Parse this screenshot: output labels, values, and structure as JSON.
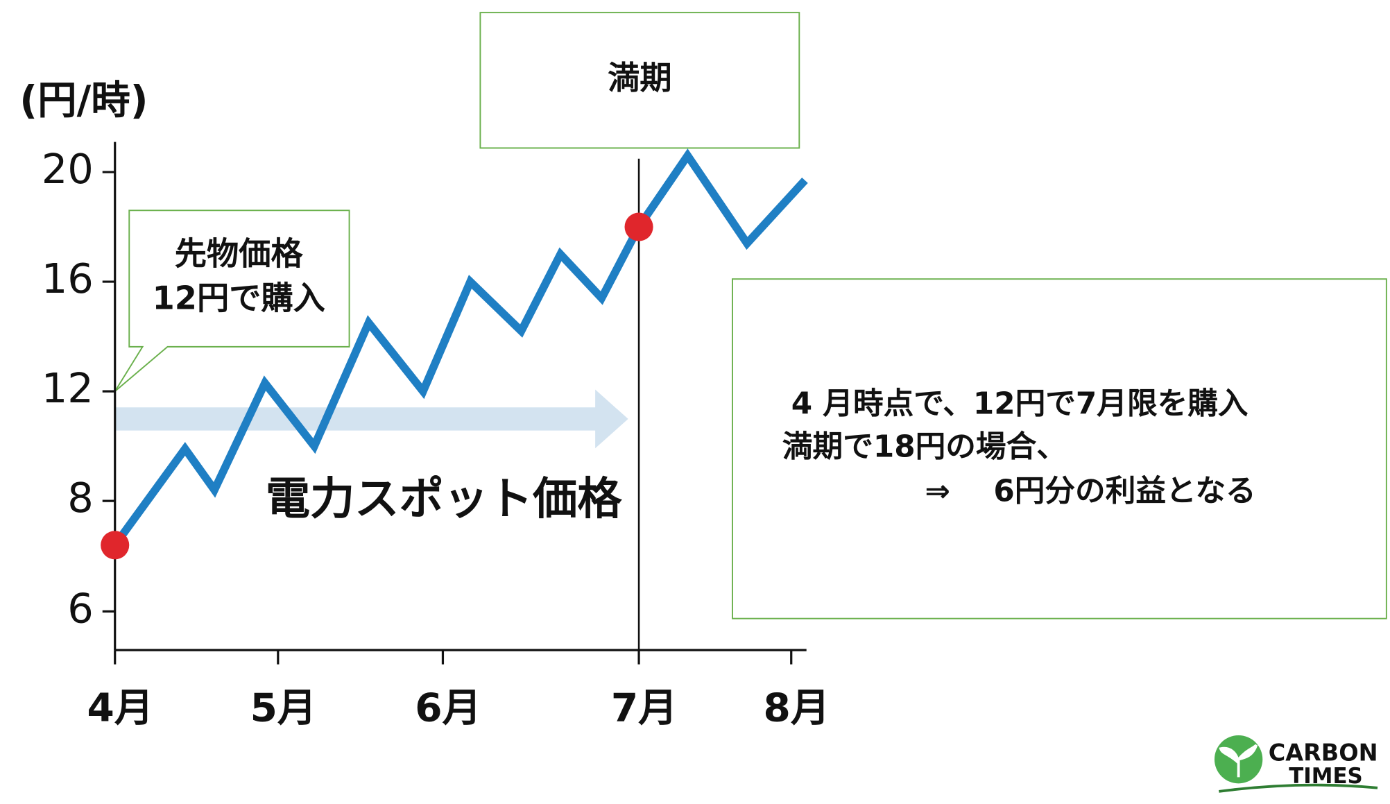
{
  "chart_data": {
    "type": "line",
    "y_label": "(円/時)",
    "x": [
      4.0,
      4.43,
      4.61,
      4.92,
      5.22,
      5.55,
      5.88,
      6.14,
      6.4,
      6.6,
      6.81,
      7.0,
      7.32,
      7.71,
      8.09
    ],
    "series": [
      {
        "name": "電力スポット価格",
        "color": "#1f7fc4",
        "values": [
          7.2,
          9.9,
          8.4,
          12.3,
          10.0,
          14.5,
          12.0,
          16.0,
          14.2,
          17.0,
          15.4,
          18.0,
          20.6,
          17.4,
          19.7
        ]
      }
    ],
    "highlighted_points": [
      0,
      11
    ],
    "highlight_color": "#e0262c",
    "xlim": [
      4,
      8.1
    ],
    "xticks": [
      {
        "value": 4,
        "label": "4月"
      },
      {
        "value": 5,
        "label": "5月"
      },
      {
        "value": 6,
        "label": "6月"
      },
      {
        "value": 7,
        "label": "7月"
      },
      {
        "value": 8,
        "label": "8月"
      }
    ],
    "ylim": [
      5.3,
      21.1
    ],
    "yticks": [
      6,
      8,
      12,
      16,
      20
    ],
    "grid": false,
    "annotations": {
      "maturity": "満期",
      "futures_callout": [
        "先物価格",
        "12円で購入"
      ],
      "explanation": [
        "4 月時点で、12円で7月限を購入",
        "満期で18円の場合、",
        "⇒",
        "6円分の利益となる"
      ]
    }
  },
  "logo": [
    "CARBON",
    "TIMES"
  ]
}
